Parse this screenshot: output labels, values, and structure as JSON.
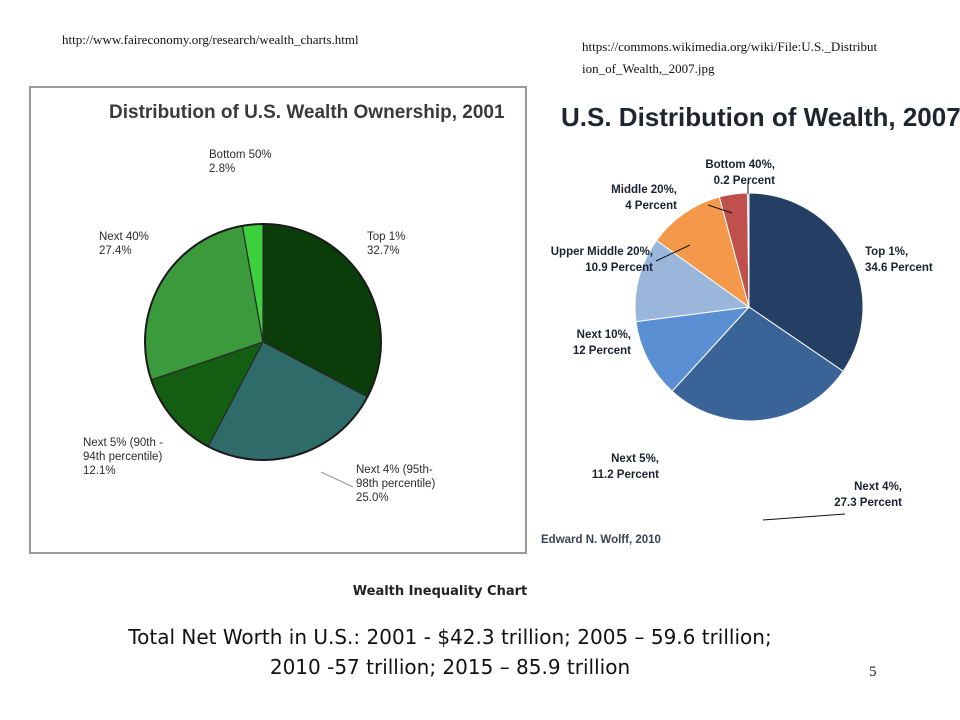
{
  "sources": {
    "left_url": "http://www.faireconomy.org/research/wealth_charts.html",
    "right_url_line1": "https://commons.wikimedia.org/wiki/File:U.S._Distribut",
    "right_url_line2": "ion_of_Wealth,_2007.jpg"
  },
  "caption": "Wealth Inequality Chart",
  "net_worth": {
    "line1": "Total Net Worth in U.S.: 2001 - $42.3 trillion; 2005 – 59.6 trillion;",
    "line2": "2010 -57 trillion; 2015 – 85.9 trillion"
  },
  "page_number": "5",
  "chart_data": [
    {
      "type": "pie",
      "title": "Distribution of U.S. Wealth Ownership, 2001",
      "slices": [
        {
          "label_lines": [
            "Top 1%",
            "32.7%"
          ],
          "value": 32.7,
          "color": "#0a3d0a"
        },
        {
          "label_lines": [
            "Next 4% (95th-",
            "98th percentile)",
            "25.0%"
          ],
          "value": 25.0,
          "color": "#2f6b68"
        },
        {
          "label_lines": [
            "Next 5% (90th -",
            "94th percentile)",
            "12.1%"
          ],
          "value": 12.1,
          "color": "#135e13"
        },
        {
          "label_lines": [
            "Next 40%",
            "27.4%"
          ],
          "value": 27.4,
          "color": "#3b9a3b"
        },
        {
          "label_lines": [
            "Bottom 50%",
            "2.8%"
          ],
          "value": 2.8,
          "color": "#3ed13e"
        }
      ],
      "start": "12 o'clock, clockwise"
    },
    {
      "type": "pie",
      "title": "U.S. Distribution of Wealth, 2007",
      "credit": "Edward N. Wolff, 2010",
      "slices": [
        {
          "label_lines": [
            "Top 1%,",
            "34.6 Percent"
          ],
          "value": 34.6,
          "color": "#243f63"
        },
        {
          "label_lines": [
            "Next 4%,",
            "27.3 Percent"
          ],
          "value": 27.3,
          "color": "#3a6497"
        },
        {
          "label_lines": [
            "Next 5%,",
            "11.2 Percent"
          ],
          "value": 11.2,
          "color": "#5a8fd4"
        },
        {
          "label_lines": [
            "Next 10%,",
            "12 Percent"
          ],
          "value": 12.0,
          "color": "#9ab7db"
        },
        {
          "label_lines": [
            "Upper Middle 20%,",
            "10.9 Percent"
          ],
          "value": 10.9,
          "color": "#f4984a"
        },
        {
          "label_lines": [
            "Middle 20%,",
            "4 Percent"
          ],
          "value": 4.0,
          "color": "#c0504d"
        },
        {
          "label_lines": [
            "Bottom 40%,",
            "0.2 Percent"
          ],
          "value": 0.2,
          "color": "#9bbb59"
        }
      ],
      "start": "12 o'clock, clockwise"
    }
  ]
}
